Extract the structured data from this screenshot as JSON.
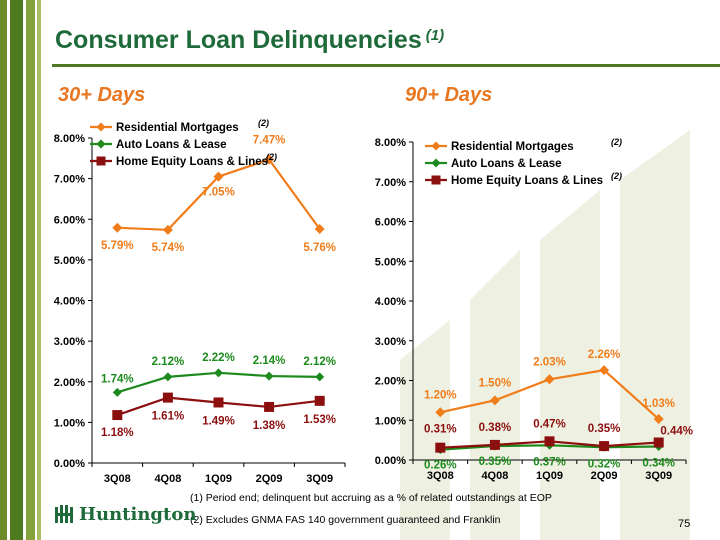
{
  "title": "Consumer Loan Delinquencies",
  "title_note": "(1)",
  "footnotes": [
    "(1)  Period end; delinquent but accruing as a % of related outstandings at EOP",
    "(2)  Excludes GNMA FAS 140 government guaranteed and Franklin"
  ],
  "logo_text": "Huntington",
  "page_number": "75",
  "colors": {
    "residential": "#f07c1a",
    "auto": "#1d8a1d",
    "home_equity": "#8b0f0f",
    "title": "#1f6a3a",
    "subhead": "#e87722"
  },
  "chart_data": [
    {
      "type": "line",
      "title": "30+ Days",
      "categories": [
        "3Q08",
        "4Q08",
        "1Q09",
        "2Q09",
        "3Q09"
      ],
      "yticks": [
        "0.00%",
        "1.00%",
        "2.00%",
        "3.00%",
        "4.00%",
        "5.00%",
        "6.00%",
        "7.00%",
        "8.00%"
      ],
      "ylim": [
        0,
        8
      ],
      "legend_position": "top-left",
      "series": [
        {
          "name": "Residential Mortgages",
          "note": "(2)",
          "values": [
            5.79,
            5.74,
            7.05,
            7.47,
            5.76
          ],
          "labels": [
            "5.79%",
            "5.74%",
            "7.05%",
            "7.47%",
            "5.76%"
          ]
        },
        {
          "name": "Auto Loans & Lease",
          "note": "",
          "values": [
            1.74,
            2.12,
            2.22,
            2.14,
            2.12
          ],
          "labels": [
            "1.74%",
            "2.12%",
            "2.22%",
            "2.14%",
            "2.12%"
          ]
        },
        {
          "name": "Home Equity Loans & Lines",
          "note": "(2)",
          "values": [
            1.18,
            1.61,
            1.49,
            1.38,
            1.53
          ],
          "labels": [
            "1.18%",
            "1.61%",
            "1.49%",
            "1.38%",
            "1.53%"
          ]
        }
      ]
    },
    {
      "type": "line",
      "title": "90+ Days",
      "categories": [
        "3Q08",
        "4Q08",
        "1Q09",
        "2Q09",
        "3Q09"
      ],
      "yticks": [
        "0.00%",
        "1.00%",
        "2.00%",
        "3.00%",
        "4.00%",
        "5.00%",
        "6.00%",
        "7.00%",
        "8.00%"
      ],
      "ylim": [
        0,
        8
      ],
      "legend_position": "top-left",
      "series": [
        {
          "name": "Residential Mortgages",
          "note": "(2)",
          "values": [
            1.2,
            1.5,
            2.03,
            2.26,
            1.03
          ],
          "labels": [
            "1.20%",
            "1.50%",
            "2.03%",
            "2.26%",
            "1.03%"
          ]
        },
        {
          "name": "Auto Loans & Lease",
          "note": "",
          "values": [
            0.26,
            0.35,
            0.37,
            0.32,
            0.34
          ],
          "labels": [
            "0.26%",
            "0.35%",
            "0.37%",
            "0.32%",
            "0.34%"
          ]
        },
        {
          "name": "Home Equity Loans & Lines",
          "note": "(2)",
          "values": [
            0.31,
            0.38,
            0.47,
            0.35,
            0.44
          ],
          "labels": [
            "0.31%",
            "0.38%",
            "0.47%",
            "0.35%",
            "0.44%"
          ]
        }
      ]
    }
  ]
}
